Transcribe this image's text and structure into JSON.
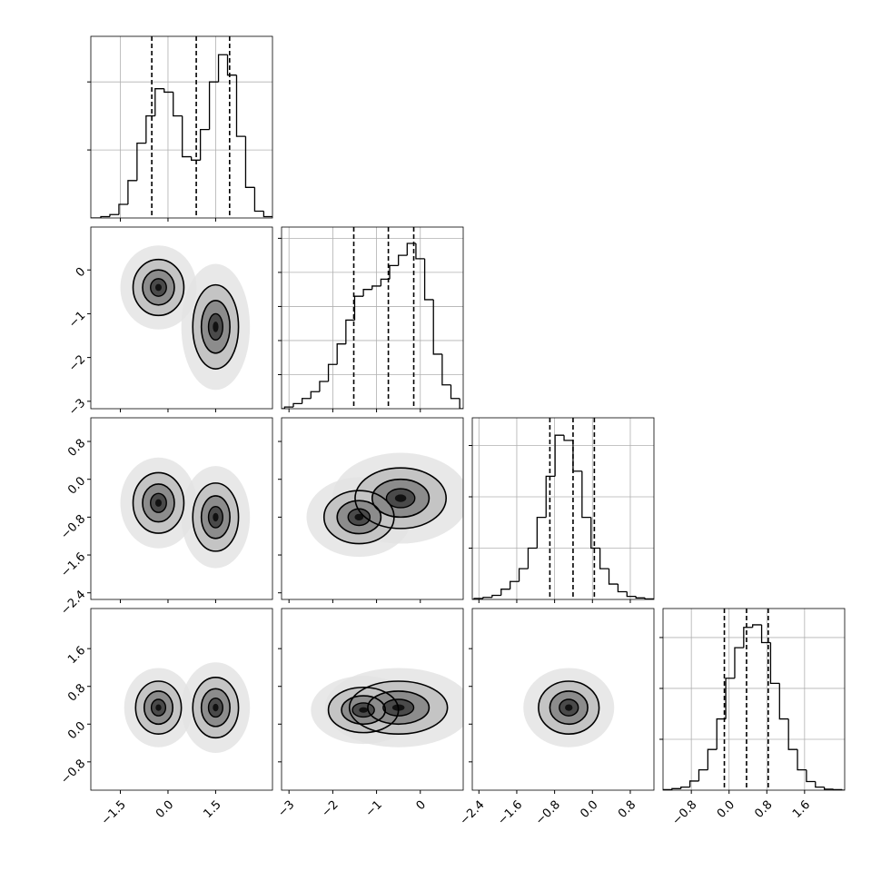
{
  "chart_data": {
    "type": "corner",
    "color": "#000000",
    "grid": true,
    "variables": [
      {
        "lim": [
          -2.43,
          3.29
        ],
        "ticks": [
          {
            "value": -1.5,
            "label": "−1.5"
          },
          {
            "value": 0,
            "label": "0.0"
          },
          1.5
        ],
        "bins": [
          -2.4,
          -2.115,
          -1.83,
          -1.545,
          -1.26,
          -0.975,
          -0.69,
          -0.405,
          -0.12,
          0.165,
          0.45,
          0.735,
          1.02,
          1.305,
          1.59,
          1.875,
          2.16,
          2.445,
          2.73,
          3.015,
          3.3
        ],
        "counts": [
          0.0,
          0.02,
          0.05,
          0.2,
          0.55,
          1.1,
          1.5,
          1.9,
          1.85,
          1.5,
          0.9,
          0.85,
          1.3,
          2.0,
          2.4,
          2.1,
          1.2,
          0.45,
          0.1,
          0.02
        ],
        "hist_ylim": [
          0,
          2.67
        ],
        "hist_yticks": [
          1,
          2
        ],
        "quantiles": [
          -0.51,
          0.89,
          1.94
        ]
      },
      {
        "lim": [
          -3.17,
          0.98
        ],
        "ticks": [
          {
            "value": -3,
            "label": "−3"
          },
          {
            "value": -2,
            "label": "−2"
          },
          {
            "value": -1,
            "label": "−1"
          },
          0
        ],
        "bins": [
          -3.1,
          -2.9,
          -2.7,
          -2.5,
          -2.3,
          -2.1,
          -1.9,
          -1.7,
          -1.5,
          -1.3,
          -1.1,
          -0.9,
          -0.7,
          -0.5,
          -0.3,
          -0.1,
          0.1,
          0.3,
          0.5,
          0.7,
          0.9
        ],
        "counts": [
          0.05,
          0.15,
          0.3,
          0.5,
          0.8,
          1.3,
          1.9,
          2.6,
          3.3,
          3.5,
          3.6,
          3.8,
          4.2,
          4.5,
          4.85,
          4.4,
          3.2,
          1.6,
          0.7,
          0.3
        ],
        "hist_ylim": [
          0,
          5.33
        ],
        "hist_yticks": [
          1,
          2,
          3,
          4,
          5
        ],
        "quantiles": [
          -1.52,
          -0.73,
          -0.15
        ]
      },
      {
        "lim": [
          -2.54,
          1.3
        ],
        "ticks": [
          {
            "value": -2.4,
            "label": "−2.4"
          },
          {
            "value": -1.6,
            "label": "−1.6"
          },
          {
            "value": -0.8,
            "label": "−0.8"
          },
          {
            "value": 0,
            "label": "0.0"
          },
          0.8
        ],
        "bins": [
          -2.5,
          -2.31,
          -2.12,
          -1.93,
          -1.74,
          -1.55,
          -1.36,
          -1.17,
          -0.98,
          -0.79,
          -0.6,
          -0.41,
          -0.22,
          -0.03,
          0.16,
          0.35,
          0.54,
          0.73,
          0.92,
          1.11,
          1.3
        ],
        "counts": [
          0.02,
          0.04,
          0.08,
          0.2,
          0.35,
          0.6,
          1.0,
          1.6,
          2.4,
          3.2,
          3.1,
          2.5,
          1.6,
          1.0,
          0.6,
          0.3,
          0.15,
          0.06,
          0.03,
          0.01
        ],
        "hist_ylim": [
          0,
          3.54
        ],
        "hist_yticks": [
          1,
          2,
          3
        ],
        "quantiles": [
          -0.9,
          -0.41,
          0.04
        ]
      },
      {
        "lim": [
          -1.4,
          2.45
        ],
        "ticks": [
          {
            "value": -0.8,
            "label": "−0.8"
          },
          {
            "value": 0,
            "label": "0.0"
          },
          0.8,
          1.6
        ],
        "bins": [
          -1.4,
          -1.21,
          -1.02,
          -0.83,
          -0.64,
          -0.45,
          -0.26,
          -0.07,
          0.12,
          0.31,
          0.5,
          0.69,
          0.88,
          1.07,
          1.26,
          1.45,
          1.64,
          1.83,
          2.02,
          2.21,
          2.4
        ],
        "counts": [
          0.01,
          0.03,
          0.06,
          0.18,
          0.4,
          0.8,
          1.4,
          2.2,
          2.8,
          3.2,
          3.25,
          2.9,
          2.1,
          1.4,
          0.8,
          0.4,
          0.17,
          0.06,
          0.02,
          0.01
        ],
        "hist_ylim": [
          0,
          3.57
        ],
        "hist_yticks": [
          1,
          2,
          3
        ],
        "quantiles": [
          -0.1,
          0.37,
          0.83
        ]
      }
    ],
    "panels": [
      {
        "x_var": 0,
        "y_var": 1,
        "blobs": [
          {
            "x": -0.3,
            "y": -0.4,
            "sx": 0.5,
            "sy": 0.4
          },
          {
            "x": 1.5,
            "y": -1.3,
            "sx": 0.45,
            "sy": 0.6
          }
        ]
      },
      {
        "x_var": 0,
        "y_var": 2,
        "blobs": [
          {
            "x": -0.3,
            "y": -0.5,
            "sx": 0.5,
            "sy": 0.4
          },
          {
            "x": 1.5,
            "y": -0.8,
            "sx": 0.45,
            "sy": 0.45
          }
        ]
      },
      {
        "x_var": 1,
        "y_var": 2,
        "blobs": [
          {
            "x": -0.45,
            "y": -0.4,
            "sx": 0.65,
            "sy": 0.4
          },
          {
            "x": -1.4,
            "y": -0.8,
            "sx": 0.5,
            "sy": 0.35
          }
        ]
      },
      {
        "x_var": 0,
        "y_var": 3,
        "blobs": [
          {
            "x": -0.3,
            "y": 0.35,
            "sx": 0.45,
            "sy": 0.35
          },
          {
            "x": 1.5,
            "y": 0.35,
            "sx": 0.45,
            "sy": 0.4
          }
        ]
      },
      {
        "x_var": 1,
        "y_var": 3,
        "blobs": [
          {
            "x": -0.5,
            "y": 0.35,
            "sx": 0.7,
            "sy": 0.35
          },
          {
            "x": -1.3,
            "y": 0.3,
            "sx": 0.5,
            "sy": 0.3
          }
        ]
      },
      {
        "x_var": 2,
        "y_var": 3,
        "blobs": [
          {
            "x": -0.5,
            "y": 0.35,
            "sx": 0.4,
            "sy": 0.35
          }
        ]
      }
    ]
  }
}
